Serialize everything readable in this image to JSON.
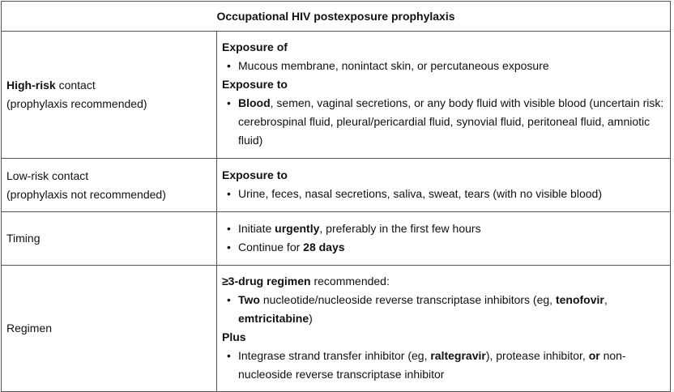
{
  "title": "Occupational HIV postexposure prophylaxis",
  "rows": [
    {
      "label_bold": "High-risk",
      "label_rest": " contact",
      "label_line2": "(prophylaxis recommended)",
      "sections": [
        {
          "heading": "Exposure of",
          "items": [
            {
              "parts": [
                {
                  "t": "Mucous membrane, nonintact skin, or percutaneous exposure",
                  "b": false
                }
              ]
            }
          ]
        },
        {
          "heading": "Exposure to",
          "items": [
            {
              "parts": [
                {
                  "t": "Blood",
                  "b": true
                },
                {
                  "t": ", semen, vaginal secretions, or any body fluid with visible blood (uncertain risk: cerebrospinal fluid, pleural/pericardial fluid, synovial fluid, peritoneal fluid, amniotic fluid)",
                  "b": false
                }
              ]
            }
          ]
        }
      ]
    },
    {
      "label_bold": "",
      "label_rest": "Low-risk contact",
      "label_line2": "(prophylaxis not recommended)",
      "sections": [
        {
          "heading": "Exposure to",
          "items": [
            {
              "parts": [
                {
                  "t": "Urine, feces, nasal secretions, saliva, sweat, tears (with no visible blood)",
                  "b": false
                }
              ]
            }
          ]
        }
      ]
    },
    {
      "label_bold": "",
      "label_rest": "Timing",
      "label_line2": "",
      "sections": [
        {
          "heading": "",
          "items": [
            {
              "parts": [
                {
                  "t": "Initiate ",
                  "b": false
                },
                {
                  "t": "urgently",
                  "b": true
                },
                {
                  "t": ", preferably in the first few hours",
                  "b": false
                }
              ]
            },
            {
              "parts": [
                {
                  "t": "Continue for ",
                  "b": false
                },
                {
                  "t": "28 days",
                  "b": true
                }
              ]
            }
          ]
        }
      ]
    },
    {
      "label_bold": "",
      "label_rest": "Regimen",
      "label_line2": "",
      "sections": [
        {
          "heading_parts": [
            {
              "t": "≥3-drug regimen",
              "b": true
            },
            {
              "t": " recommended:",
              "b": false
            }
          ],
          "items": [
            {
              "parts": [
                {
                  "t": "Two",
                  "b": true
                },
                {
                  "t": " nucleotide/nucleoside reverse transcriptase inhibitors (eg, ",
                  "b": false
                },
                {
                  "t": "tenofovir",
                  "b": true
                },
                {
                  "t": ", ",
                  "b": false
                },
                {
                  "t": "emtricitabine",
                  "b": true
                },
                {
                  "t": ")",
                  "b": false
                }
              ]
            }
          ]
        },
        {
          "heading": "Plus",
          "items": [
            {
              "parts": [
                {
                  "t": "Integrase strand transfer inhibitor (eg, ",
                  "b": false
                },
                {
                  "t": "raltegravir",
                  "b": true
                },
                {
                  "t": "), protease inhibitor, ",
                  "b": false
                },
                {
                  "t": "or",
                  "b": true
                },
                {
                  "t": " non-nucleoside reverse transcriptase inhibitor",
                  "b": false
                }
              ]
            }
          ]
        }
      ]
    }
  ]
}
